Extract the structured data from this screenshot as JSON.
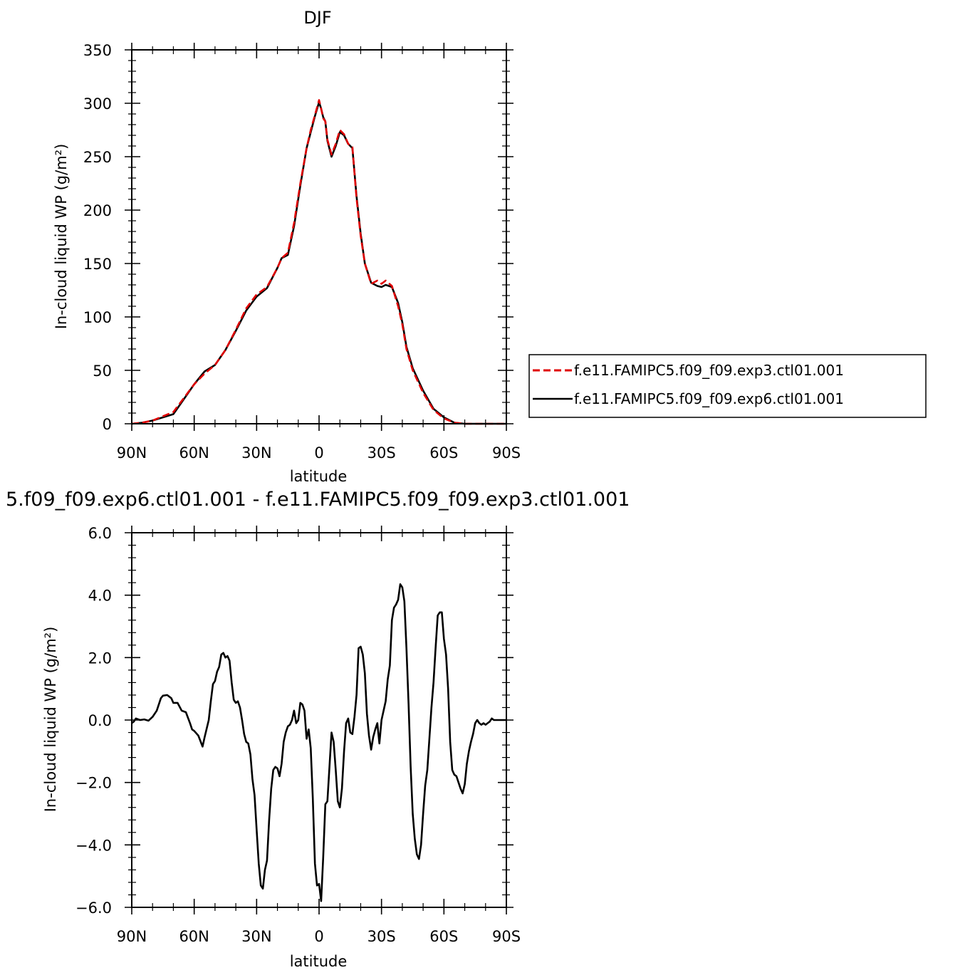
{
  "chart_data": [
    {
      "type": "line",
      "title": "DJF",
      "xlabel": "latitude",
      "ylabel": "In-cloud liquid WP (g/m²)",
      "xlim": [
        90,
        -90
      ],
      "ylim": [
        0,
        350
      ],
      "x_ticks": [
        90,
        60,
        30,
        0,
        -30,
        -60,
        -90
      ],
      "x_tick_labels": [
        "90N",
        "60N",
        "30N",
        "0",
        "30S",
        "60S",
        "90S"
      ],
      "y_ticks": [
        0,
        50,
        100,
        150,
        200,
        250,
        300,
        350
      ],
      "y_tick_labels": [
        "0",
        "50",
        "100",
        "150",
        "200",
        "250",
        "300",
        "350"
      ],
      "grid": false,
      "legend_position": "right",
      "series": [
        {
          "name": "f.e11.FAMIPC5.f09_f09.exp3.ctl01.001",
          "color": "#e00000",
          "dash": "dashed",
          "x": [
            90,
            85,
            80,
            75,
            70,
            65,
            60,
            55,
            50,
            45,
            40,
            35,
            30,
            25,
            20,
            18,
            15,
            12,
            9,
            6,
            4,
            2,
            0,
            -1,
            -2,
            -3,
            -4,
            -6,
            -8,
            -10,
            -12,
            -14,
            -16,
            -18,
            -20,
            -22,
            -25,
            -28,
            -30,
            -32,
            -35,
            -38,
            -40,
            -42,
            -45,
            -50,
            -55,
            -60,
            -65,
            -70,
            -75,
            -80,
            -85,
            -90
          ],
          "y": [
            0,
            1,
            3,
            7,
            11,
            24,
            37,
            47,
            55,
            69,
            88,
            108,
            121,
            128,
            146,
            155,
            160,
            188,
            225,
            258,
            275,
            289,
            303,
            295,
            286,
            283,
            266,
            252,
            262,
            275,
            271,
            262,
            259,
            211,
            176,
            150,
            131,
            134,
            131,
            134,
            129,
            110,
            93,
            70,
            50,
            29,
            13,
            5,
            1,
            0,
            0,
            0,
            0,
            0
          ]
        },
        {
          "name": "f.e11.FAMIPC5.f09_f09.exp6.ctl01.001",
          "color": "#000000",
          "dash": "solid",
          "x": [
            90,
            85,
            80,
            75,
            70,
            65,
            60,
            55,
            50,
            45,
            40,
            35,
            30,
            25,
            20,
            18,
            15,
            12,
            9,
            6,
            4,
            2,
            0,
            -1,
            -2,
            -3,
            -4,
            -6,
            -8,
            -10,
            -12,
            -14,
            -16,
            -18,
            -20,
            -22,
            -25,
            -28,
            -30,
            -32,
            -35,
            -38,
            -40,
            -42,
            -45,
            -50,
            -55,
            -60,
            -65,
            -70,
            -75,
            -80,
            -85,
            -90
          ],
          "y": [
            0,
            1,
            3,
            6,
            9,
            23,
            37,
            49,
            55,
            69,
            87,
            106,
            119,
            127,
            146,
            155,
            158,
            185,
            223,
            258,
            273,
            288,
            301,
            295,
            287,
            283,
            265,
            250,
            260,
            273,
            270,
            262,
            258,
            213,
            178,
            150,
            132,
            129,
            128,
            130,
            128,
            113,
            95,
            72,
            52,
            31,
            14,
            6,
            1,
            0,
            0,
            0,
            0,
            0
          ]
        }
      ]
    },
    {
      "type": "line",
      "title": "5.f09_f09.exp6.ctl01.001 - f.e11.FAMIPC5.f09_f09.exp3.ctl01.001",
      "xlabel": "latitude",
      "ylabel": "In-cloud liquid WP (g/m²)",
      "xlim": [
        90,
        -90
      ],
      "ylim": [
        -6,
        6
      ],
      "x_ticks": [
        90,
        60,
        30,
        0,
        -30,
        -60,
        -90
      ],
      "x_tick_labels": [
        "90N",
        "60N",
        "30N",
        "0",
        "30S",
        "60S",
        "90S"
      ],
      "y_ticks": [
        -6,
        -4,
        -2,
        0,
        2,
        4,
        6
      ],
      "y_tick_labels": [
        "−6.0",
        "−4.0",
        "−2.0",
        "0.0",
        "2.0",
        "4.0",
        "6.0"
      ],
      "grid": false,
      "series": [
        {
          "color": "#000000",
          "dash": "solid",
          "x": [
            90,
            89,
            88,
            86,
            84,
            82,
            80,
            78,
            76,
            75,
            73,
            71,
            70,
            68,
            66,
            64,
            62,
            61,
            60,
            58,
            56,
            55,
            53,
            52,
            51,
            50,
            49,
            48,
            47,
            46,
            45,
            44,
            43,
            42,
            41,
            40,
            39,
            38,
            37,
            36,
            35,
            34,
            33,
            32,
            31,
            30,
            29,
            28,
            27,
            26,
            25,
            24,
            23,
            22,
            21,
            20,
            19,
            18,
            17,
            16,
            15,
            14,
            13,
            12,
            11,
            10,
            9,
            8,
            7,
            6,
            5,
            4,
            3,
            2,
            1,
            0,
            -1,
            -2,
            -3,
            -4,
            -5,
            -6,
            -7,
            -8,
            -9,
            -10,
            -11,
            -12,
            -13,
            -14,
            -15,
            -16,
            -17,
            -18,
            -19,
            -20,
            -21,
            -22,
            -23,
            -24,
            -25,
            -26,
            -27,
            -28,
            -29,
            -30,
            -31,
            -32,
            -33,
            -34,
            -35,
            -36,
            -37,
            -38,
            -39,
            -40,
            -41,
            -42,
            -43,
            -44,
            -45,
            -46,
            -47,
            -48,
            -49,
            -50,
            -51,
            -52,
            -53,
            -54,
            -55,
            -56,
            -57,
            -58,
            -59,
            -60,
            -61,
            -62,
            -63,
            -64,
            -65,
            -66,
            -67,
            -68,
            -69,
            -70,
            -71,
            -72,
            -73,
            -74,
            -75,
            -76,
            -77,
            -78,
            -79,
            -80,
            -81,
            -82,
            -83,
            -84,
            -85,
            -86,
            -88,
            -90
          ],
          "y": [
            -0.1,
            -0.05,
            0.05,
            0.0,
            0.02,
            -0.02,
            0.1,
            0.3,
            0.7,
            0.78,
            0.8,
            0.7,
            0.55,
            0.55,
            0.3,
            0.25,
            -0.1,
            -0.3,
            -0.35,
            -0.5,
            -0.85,
            -0.55,
            0.0,
            0.6,
            1.15,
            1.25,
            1.55,
            1.7,
            2.1,
            2.15,
            2.0,
            2.05,
            1.9,
            1.2,
            0.65,
            0.55,
            0.6,
            0.4,
            0.0,
            -0.45,
            -0.7,
            -0.75,
            -1.1,
            -1.9,
            -2.4,
            -3.5,
            -4.6,
            -5.3,
            -5.4,
            -4.8,
            -4.5,
            -3.2,
            -2.2,
            -1.6,
            -1.5,
            -1.55,
            -1.8,
            -1.4,
            -0.7,
            -0.4,
            -0.2,
            -0.15,
            0.0,
            0.3,
            -0.1,
            0.0,
            0.55,
            0.5,
            0.3,
            -0.6,
            -0.3,
            -0.9,
            -2.5,
            -4.6,
            -5.3,
            -5.25,
            -5.8,
            -4.4,
            -2.7,
            -2.6,
            -1.5,
            -0.4,
            -0.7,
            -1.6,
            -2.6,
            -2.8,
            -2.2,
            -1.0,
            -0.1,
            0.05,
            -0.4,
            -0.45,
            0.1,
            0.8,
            2.3,
            2.35,
            2.1,
            1.5,
            0.2,
            -0.5,
            -0.95,
            -0.55,
            -0.3,
            -0.1,
            -0.75,
            0.0,
            0.3,
            0.6,
            1.3,
            1.75,
            3.2,
            3.6,
            3.7,
            3.85,
            4.35,
            4.25,
            3.8,
            2.3,
            0.5,
            -1.5,
            -3.0,
            -3.8,
            -4.3,
            -4.45,
            -4.0,
            -3.0,
            -2.1,
            -1.6,
            -0.6,
            0.4,
            1.2,
            2.3,
            3.35,
            3.45,
            3.45,
            2.6,
            2.1,
            1.0,
            -0.7,
            -1.6,
            -1.75,
            -1.8,
            -2.0,
            -2.2,
            -2.35,
            -2.05,
            -1.4,
            -1.0,
            -0.7,
            -0.45,
            -0.1,
            0.0,
            -0.1,
            -0.15,
            -0.1,
            -0.15,
            -0.1,
            -0.05,
            0.05,
            0.0,
            0.0,
            0.0,
            0.0,
            0.0
          ]
        }
      ]
    }
  ]
}
